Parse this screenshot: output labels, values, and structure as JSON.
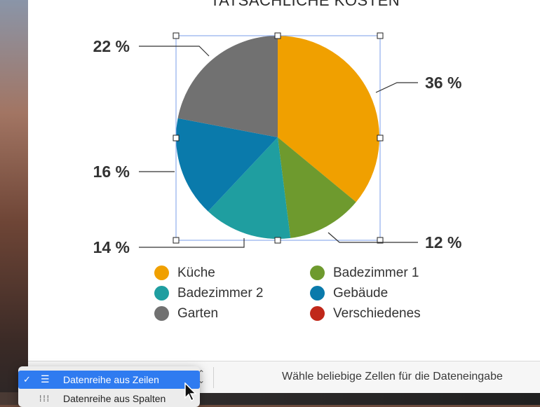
{
  "chart_data": {
    "type": "pie",
    "title": "TATSÄCHLICHE KOSTEN",
    "slices": [
      {
        "label": "Küche",
        "value": 36,
        "display": "36 %",
        "color": "#f0a000"
      },
      {
        "label": "Badezimmer 1",
        "value": 12,
        "display": "12 %",
        "color": "#6e9a2e"
      },
      {
        "label": "Badezimmer 2",
        "value": 14,
        "display": "14 %",
        "color": "#1f9ea0"
      },
      {
        "label": "Gebäude",
        "value": 16,
        "display": "16 %",
        "color": "#0a7aab"
      },
      {
        "label": "Garten",
        "value": 22,
        "display": "22 %",
        "color": "#717171"
      }
    ],
    "legend": [
      {
        "label": "Küche",
        "color": "#f0a000"
      },
      {
        "label": "Badezimmer 1",
        "color": "#6e9a2e"
      },
      {
        "label": "Badezimmer 2",
        "color": "#1f9ea0"
      },
      {
        "label": "Gebäude",
        "color": "#0a7aab"
      },
      {
        "label": "Garten",
        "color": "#717171"
      },
      {
        "label": "Verschiedenes",
        "color": "#c0281a"
      }
    ],
    "legend_placement": "bottom"
  },
  "bottom_bar": {
    "hint": "Wähle beliebige Zellen für die Dateneingabe"
  },
  "menu": {
    "items": [
      {
        "label": "Datenreihe aus Zeilen",
        "icon": "rows-icon",
        "checked": true
      },
      {
        "label": "Datenreihe aus Spalten",
        "icon": "columns-icon",
        "checked": false
      }
    ]
  },
  "colors": {
    "selection": "#2f7bf0",
    "handle_box": "#7a9ee8"
  }
}
